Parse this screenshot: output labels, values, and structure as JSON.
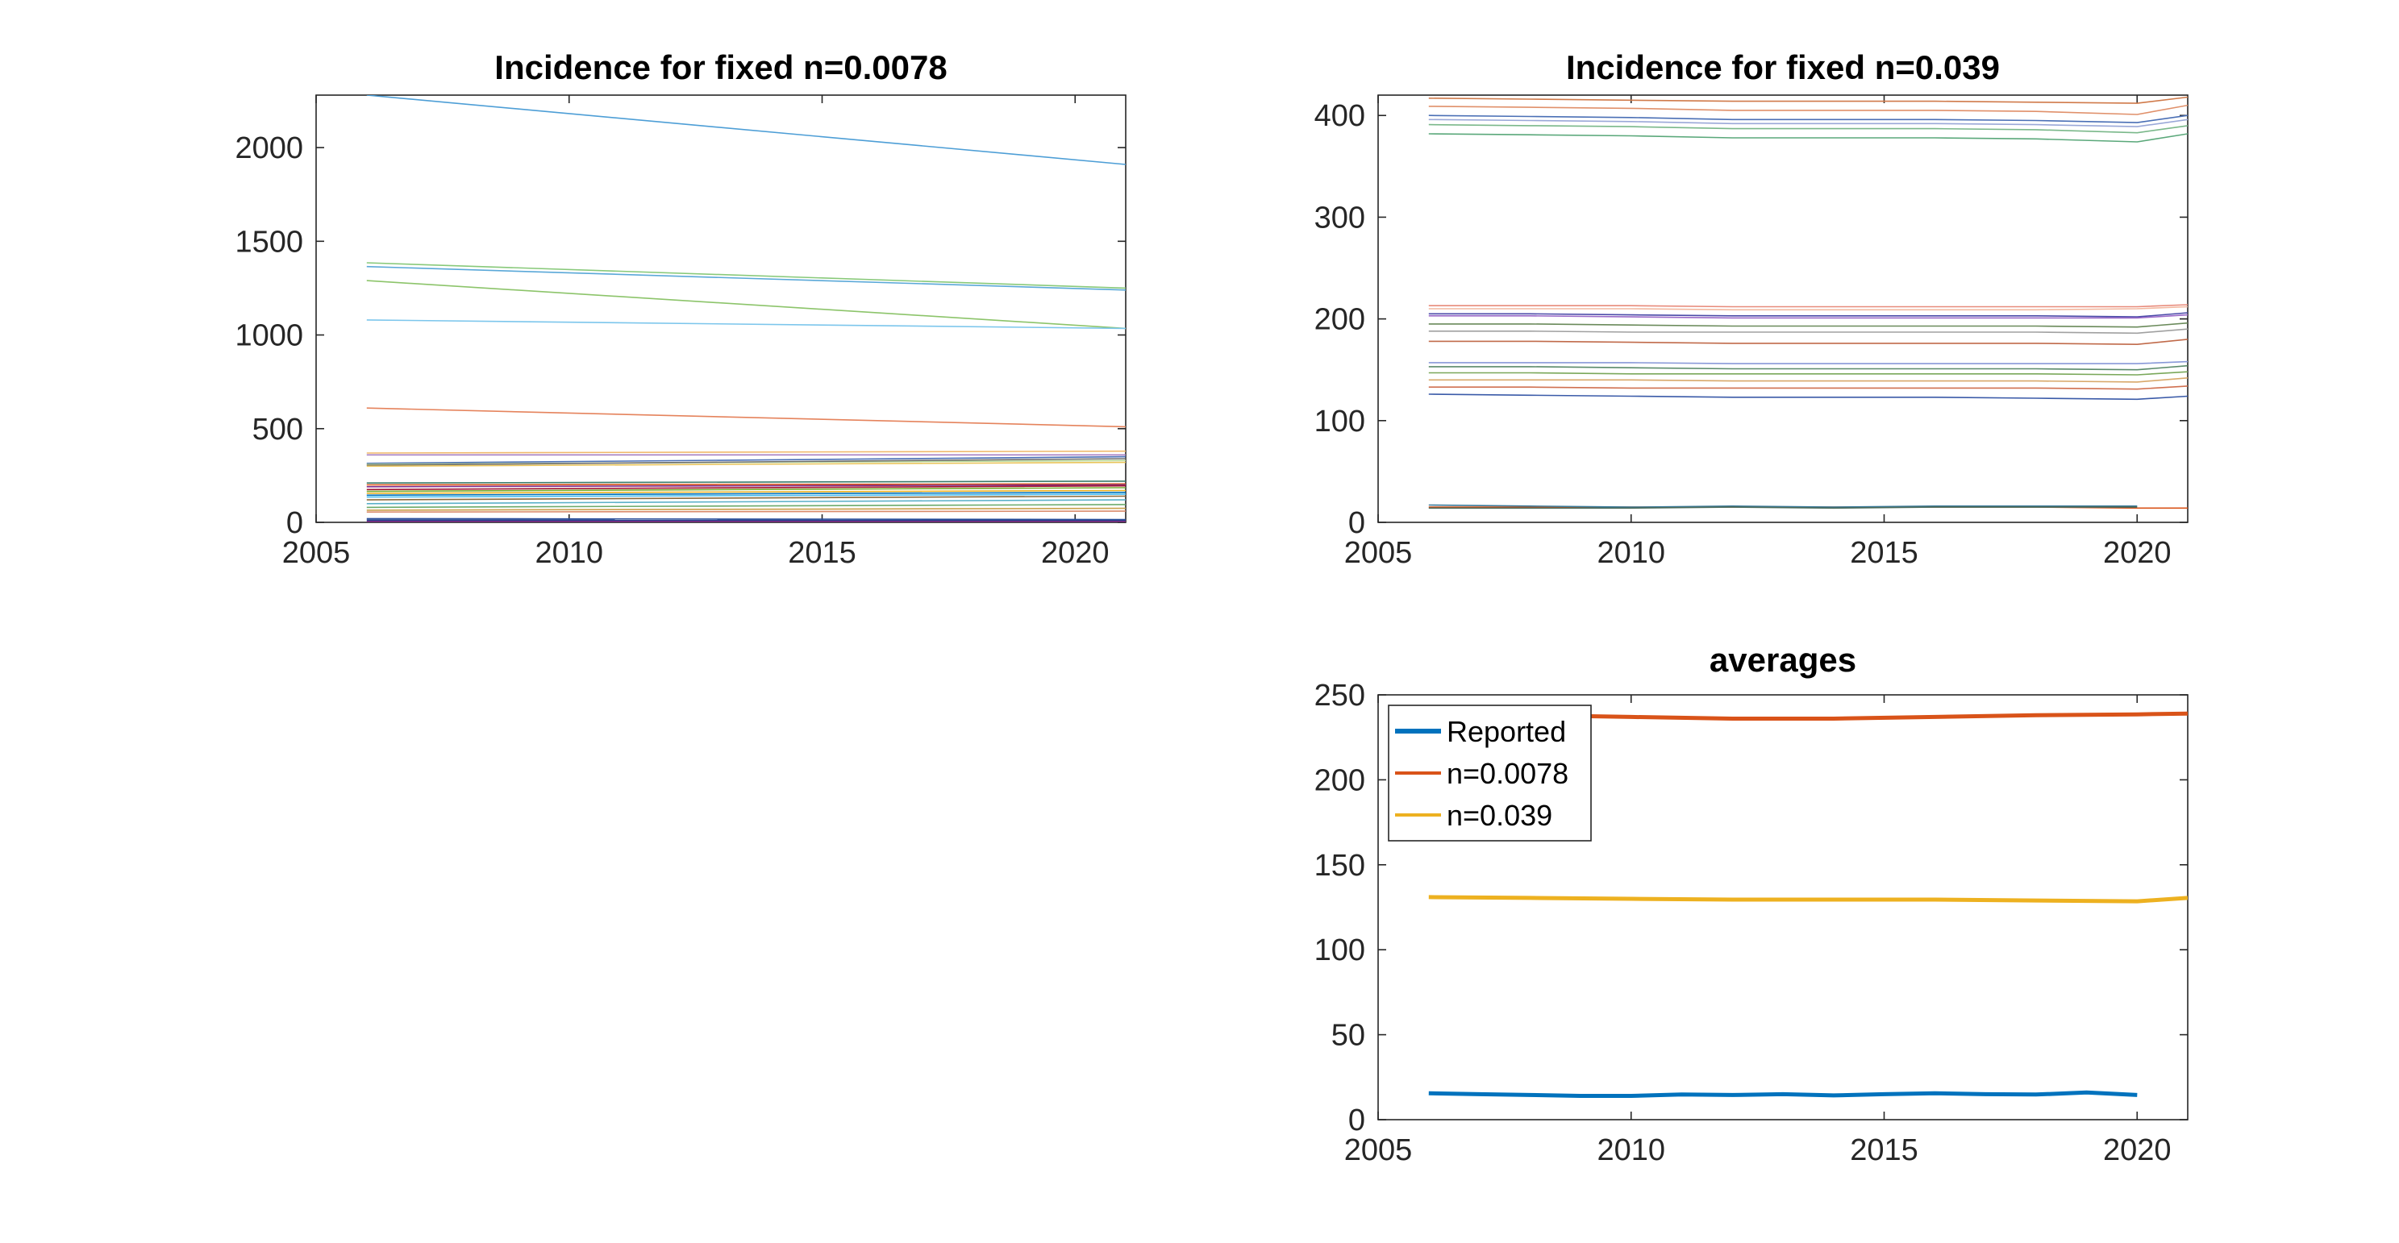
{
  "chart_data": [
    {
      "type": "line",
      "title": "Incidence for fixed n=0.0078",
      "xlim": [
        2005,
        2021
      ],
      "ylim": [
        0,
        2280
      ],
      "xticks": [
        2005,
        2010,
        2015,
        2020
      ],
      "yticks": [
        0,
        500,
        1000,
        1500,
        2000
      ],
      "x": [
        2006,
        2021
      ],
      "series": [
        {
          "color": "#4d9ed6",
          "values": [
            2280,
            1910
          ]
        },
        {
          "color": "#88c97a",
          "values": [
            1385,
            1250
          ]
        },
        {
          "color": "#5aa8d8",
          "values": [
            1365,
            1240
          ]
        },
        {
          "color": "#8cc46a",
          "values": [
            1290,
            1035
          ]
        },
        {
          "color": "#7cc6ec",
          "values": [
            1080,
            1035
          ]
        },
        {
          "color": "#e5835c",
          "values": [
            610,
            510
          ]
        },
        {
          "color": "#f0b86a",
          "values": [
            370,
            380
          ]
        },
        {
          "color": "#a77fc2",
          "values": [
            360,
            360
          ]
        },
        {
          "color": "#4a6fb5",
          "values": [
            315,
            350
          ]
        },
        {
          "color": "#b8d89a",
          "values": [
            310,
            330
          ]
        },
        {
          "color": "#707070",
          "values": [
            305,
            340
          ]
        },
        {
          "color": "#e9c45a",
          "values": [
            300,
            320
          ]
        },
        {
          "color": "#3a7a6a",
          "values": [
            210,
            220
          ]
        },
        {
          "color": "#d95319",
          "values": [
            200,
            205
          ]
        },
        {
          "color": "#7e2f8e",
          "values": [
            190,
            200
          ]
        },
        {
          "color": "#a2142f",
          "values": [
            175,
            195
          ]
        },
        {
          "color": "#77ac30",
          "values": [
            165,
            185
          ]
        },
        {
          "color": "#edb120",
          "values": [
            155,
            170
          ]
        },
        {
          "color": "#0072bd",
          "values": [
            145,
            160
          ]
        },
        {
          "color": "#4dbeee",
          "values": [
            135,
            150
          ]
        },
        {
          "color": "#8b6a3a",
          "values": [
            120,
            140
          ]
        },
        {
          "color": "#5ab0c8",
          "values": [
            100,
            120
          ]
        },
        {
          "color": "#6aaa6a",
          "values": [
            80,
            95
          ]
        },
        {
          "color": "#c9a04a",
          "values": [
            65,
            75
          ]
        },
        {
          "color": "#d98a6a",
          "values": [
            55,
            60
          ]
        },
        {
          "color": "#2a4d9a",
          "values": [
            20,
            15
          ]
        },
        {
          "color": "#1f3f8a",
          "values": [
            12,
            10
          ]
        },
        {
          "color": "#7e2f8e",
          "values": [
            5,
            5
          ]
        }
      ]
    },
    {
      "type": "line",
      "title": "Incidence for fixed n=0.039",
      "xlim": [
        2005,
        2021
      ],
      "ylim": [
        0,
        420
      ],
      "xticks": [
        2005,
        2010,
        2015,
        2020
      ],
      "yticks": [
        0,
        100,
        200,
        300,
        400
      ],
      "x": [
        2006,
        2008,
        2010,
        2012,
        2014,
        2016,
        2018,
        2020,
        2021
      ],
      "series": [
        {
          "color": "#d07a4a",
          "values": [
            417,
            416,
            415,
            414,
            414,
            414,
            413,
            412,
            418
          ]
        },
        {
          "color": "#e0906a",
          "values": [
            409,
            408,
            407,
            405,
            405,
            405,
            404,
            401,
            410
          ]
        },
        {
          "color": "#4a6fb5",
          "values": [
            400,
            399,
            398,
            396,
            396,
            396,
            395,
            393,
            400
          ]
        },
        {
          "color": "#9aa8d8",
          "values": [
            396,
            395,
            394,
            392,
            392,
            392,
            391,
            389,
            396
          ]
        },
        {
          "color": "#7ab88a",
          "values": [
            391,
            390,
            389,
            387,
            387,
            387,
            386,
            383,
            390
          ]
        },
        {
          "color": "#5aa87a",
          "values": [
            382,
            381,
            380,
            378,
            378,
            378,
            377,
            374,
            382
          ]
        },
        {
          "color": "#e88a7a",
          "values": [
            213,
            213,
            213,
            212,
            212,
            212,
            212,
            212,
            214
          ]
        },
        {
          "color": "#f2b8a0",
          "values": [
            210,
            210,
            210,
            209,
            209,
            209,
            209,
            210,
            212
          ]
        },
        {
          "color": "#4a4aa8",
          "values": [
            205,
            205,
            204,
            203,
            203,
            203,
            203,
            202,
            206
          ]
        },
        {
          "color": "#9a6ac8",
          "values": [
            203,
            203,
            202,
            201,
            201,
            201,
            201,
            201,
            204
          ]
        },
        {
          "color": "#6a8a5a",
          "values": [
            195,
            195,
            194,
            193,
            193,
            193,
            193,
            192,
            196
          ]
        },
        {
          "color": "#a0a0a0",
          "values": [
            188,
            188,
            187,
            187,
            187,
            187,
            187,
            186,
            190
          ]
        },
        {
          "color": "#c06a4a",
          "values": [
            178,
            178,
            177,
            176,
            176,
            176,
            176,
            175,
            180
          ]
        },
        {
          "color": "#8898d8",
          "values": [
            157,
            157,
            157,
            156,
            156,
            156,
            156,
            156,
            158
          ]
        },
        {
          "color": "#5a8a6a",
          "values": [
            153,
            153,
            152,
            151,
            151,
            151,
            151,
            150,
            154
          ]
        },
        {
          "color": "#7aa85a",
          "values": [
            147,
            147,
            146,
            146,
            146,
            146,
            146,
            145,
            148
          ]
        },
        {
          "color": "#d8a86a",
          "values": [
            140,
            140,
            140,
            139,
            139,
            139,
            139,
            138,
            142
          ]
        },
        {
          "color": "#d07050",
          "values": [
            133,
            133,
            132,
            132,
            132,
            132,
            132,
            131,
            134
          ]
        },
        {
          "color": "#3a5aa8",
          "values": [
            126,
            125,
            124,
            123,
            123,
            123,
            122,
            121,
            124
          ]
        },
        {
          "color": "#d95319",
          "values": [
            15,
            15,
            15,
            15,
            15,
            15,
            15,
            14,
            14
          ]
        },
        {
          "color": "#3a7a9a",
          "values": [
            17,
            16,
            15,
            16,
            15,
            16,
            16,
            16,
            null
          ]
        },
        {
          "color": "#4a6a5a",
          "values": [
            14,
            14,
            14,
            15,
            14,
            15,
            15,
            15,
            null
          ]
        }
      ]
    },
    {
      "type": "line",
      "title": "averages",
      "xlim": [
        2005,
        2021
      ],
      "ylim": [
        0,
        250
      ],
      "xticks": [
        2005,
        2010,
        2015,
        2020
      ],
      "yticks": [
        0,
        50,
        100,
        150,
        200,
        250
      ],
      "legend_position": "top-left",
      "series": [
        {
          "name": "Reported",
          "color": "#0072bd",
          "x": [
            2006,
            2007,
            2008,
            2009,
            2010,
            2011,
            2012,
            2013,
            2014,
            2015,
            2016,
            2017,
            2018,
            2019,
            2020
          ],
          "values": [
            15.5,
            15.0,
            14.5,
            14.0,
            14.0,
            14.8,
            14.5,
            15.0,
            14.3,
            15.0,
            15.5,
            15.0,
            14.8,
            16.0,
            14.5
          ]
        },
        {
          "name": "n=0.0078",
          "color": "#d95319",
          "x": [
            2006,
            2008,
            2010,
            2012,
            2014,
            2016,
            2018,
            2020,
            2021
          ],
          "values": [
            242,
            238,
            237,
            236,
            236,
            237,
            238,
            238.5,
            239
          ]
        },
        {
          "name": "n=0.039",
          "color": "#edb120",
          "x": [
            2006,
            2008,
            2010,
            2012,
            2014,
            2016,
            2018,
            2020,
            2021
          ],
          "values": [
            131,
            130.5,
            130,
            129.5,
            129.5,
            129.5,
            129,
            128.5,
            130.5
          ]
        }
      ]
    }
  ]
}
